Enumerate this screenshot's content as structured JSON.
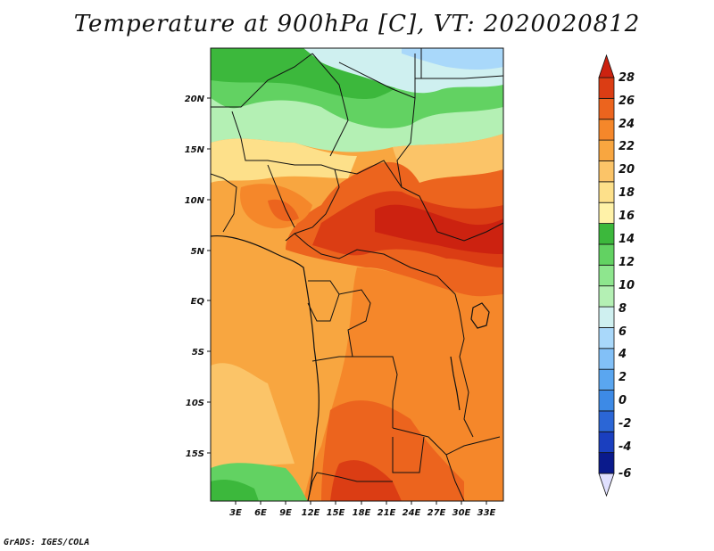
{
  "title": "Temperature at 900hPa [C], VT: 2020020812",
  "credit": "GrADS: IGES/COLA",
  "map": {
    "lat_labels": [
      "20N",
      "15N",
      "10N",
      "5N",
      "EQ",
      "5S",
      "10S",
      "15S"
    ],
    "lon_labels": [
      "3E",
      "6E",
      "9E",
      "12E",
      "15E",
      "18E",
      "21E",
      "24E",
      "27E",
      "30E",
      "33E"
    ]
  },
  "colorbar": {
    "labels": [
      "28",
      "26",
      "24",
      "22",
      "20",
      "18",
      "16",
      "14",
      "12",
      "10",
      "8",
      "6",
      "4",
      "2",
      "0",
      "-2",
      "-4",
      "-6"
    ],
    "colors": [
      "#e0e0ff",
      "#0a1a8c",
      "#1a3fbf",
      "#2b66d6",
      "#3d8ae6",
      "#5aa6f0",
      "#82c0f7",
      "#a9d8fa",
      "#cff0f0",
      "#b4f0b4",
      "#8ee68e",
      "#62d262",
      "#3cb83c",
      "#fff2a8",
      "#fde08a",
      "#fbc468",
      "#f8a640",
      "#f5872a",
      "#ec641e",
      "#db3d14",
      "#cc2210"
    ]
  }
}
